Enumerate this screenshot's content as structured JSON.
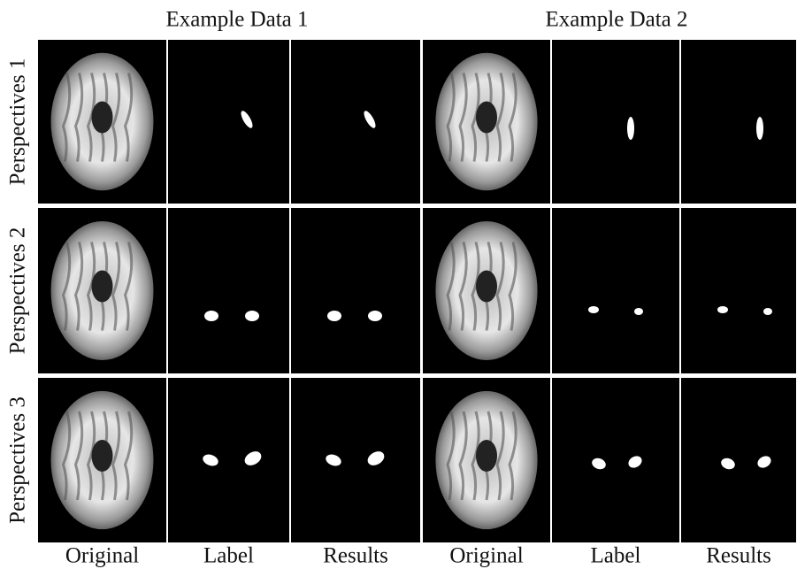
{
  "headers": [
    "Example Data 1",
    "Example Data 2"
  ],
  "row_labels": [
    "Perspectives 1",
    "Perspectives 2",
    "Perspectives 3"
  ],
  "column_labels": [
    "Original",
    "Label",
    "Results",
    "Original",
    "Label",
    "Results"
  ]
}
